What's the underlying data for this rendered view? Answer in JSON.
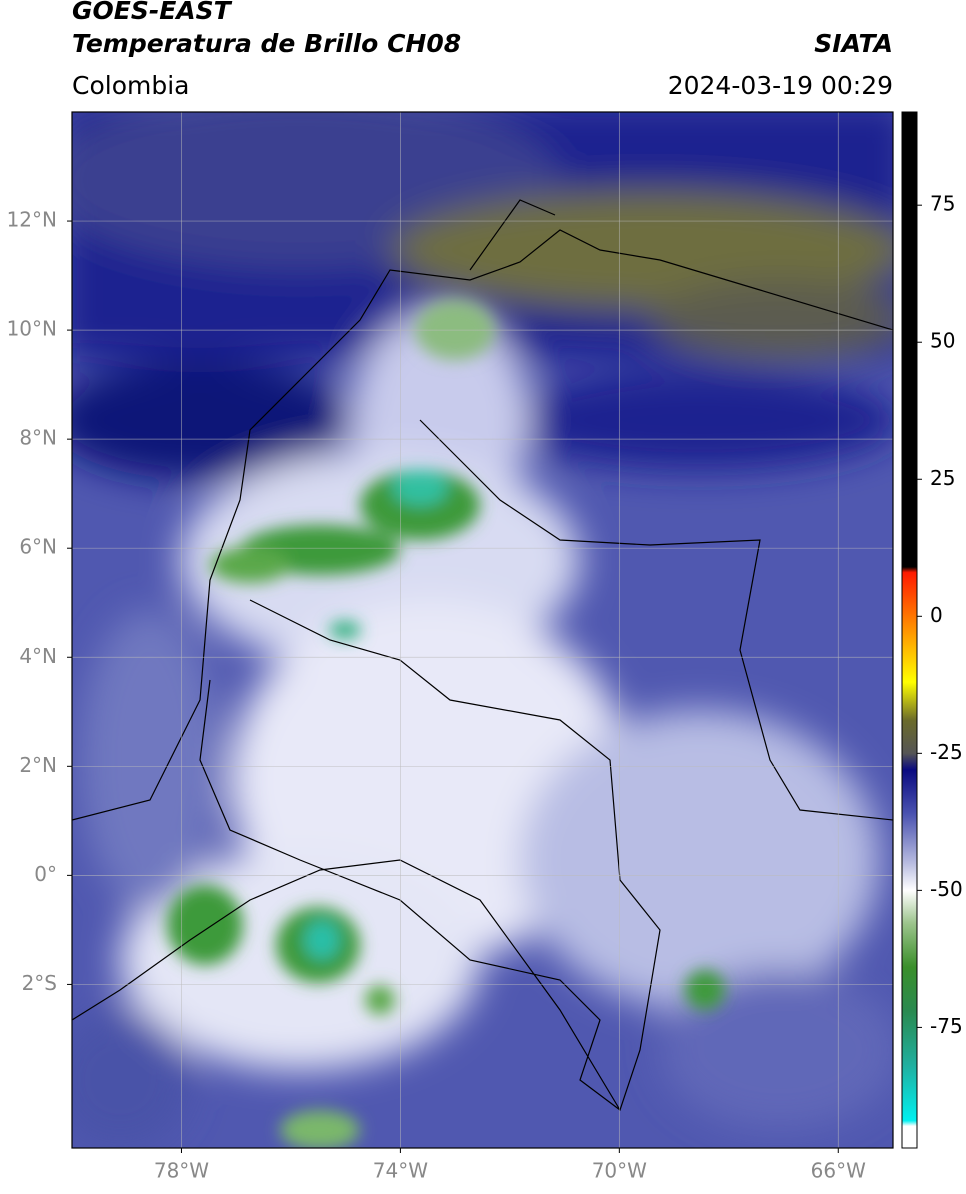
{
  "header": {
    "title": "GOES-EAST",
    "subtitle": "Temperatura de Brillo CH08",
    "source": "SIATA",
    "region": "Colombia",
    "timestamp": "2024-03-19 00:29"
  },
  "map": {
    "xlim": [
      -80,
      -65
    ],
    "ylim": [
      -5,
      14
    ],
    "xticks": [
      {
        "value": -78,
        "label": "78°W"
      },
      {
        "value": -74,
        "label": "74°W"
      },
      {
        "value": -70,
        "label": "70°W"
      },
      {
        "value": -66,
        "label": "66°W"
      }
    ],
    "yticks": [
      {
        "value": 12,
        "label": "12°N"
      },
      {
        "value": 10,
        "label": "10°N"
      },
      {
        "value": 8,
        "label": "8°N"
      },
      {
        "value": 6,
        "label": "6°N"
      },
      {
        "value": 4,
        "label": "4°N"
      },
      {
        "value": 2,
        "label": "2°N"
      },
      {
        "value": 0,
        "label": "0°"
      },
      {
        "value": -2,
        "label": "2°S"
      }
    ],
    "grid": true
  },
  "colorbar": {
    "lim": [
      -97,
      92
    ],
    "ticks": [
      75,
      50,
      25,
      0,
      -25,
      -50,
      -75
    ],
    "stops": [
      {
        "value": 92,
        "color": "#000000"
      },
      {
        "value": 9,
        "color": "#000000"
      },
      {
        "value": 8,
        "color": "#ff1a00"
      },
      {
        "value": -3,
        "color": "#ff9900"
      },
      {
        "value": -12,
        "color": "#ffff00"
      },
      {
        "value": -19,
        "color": "#6b6b2a"
      },
      {
        "value": -25,
        "color": "#555555"
      },
      {
        "value": -28,
        "color": "#0a0a80"
      },
      {
        "value": -36,
        "color": "#4a52b0"
      },
      {
        "value": -45,
        "color": "#b8bce0"
      },
      {
        "value": -50,
        "color": "#ffffff"
      },
      {
        "value": -56,
        "color": "#9cc48c"
      },
      {
        "value": -64,
        "color": "#3a8f2a"
      },
      {
        "value": -72,
        "color": "#2a8a50"
      },
      {
        "value": -82,
        "color": "#20b0a0"
      },
      {
        "value": -92,
        "color": "#00f0f0"
      },
      {
        "value": -93,
        "color": "#ffffff"
      },
      {
        "value": -97,
        "color": "#ffffff"
      }
    ]
  }
}
